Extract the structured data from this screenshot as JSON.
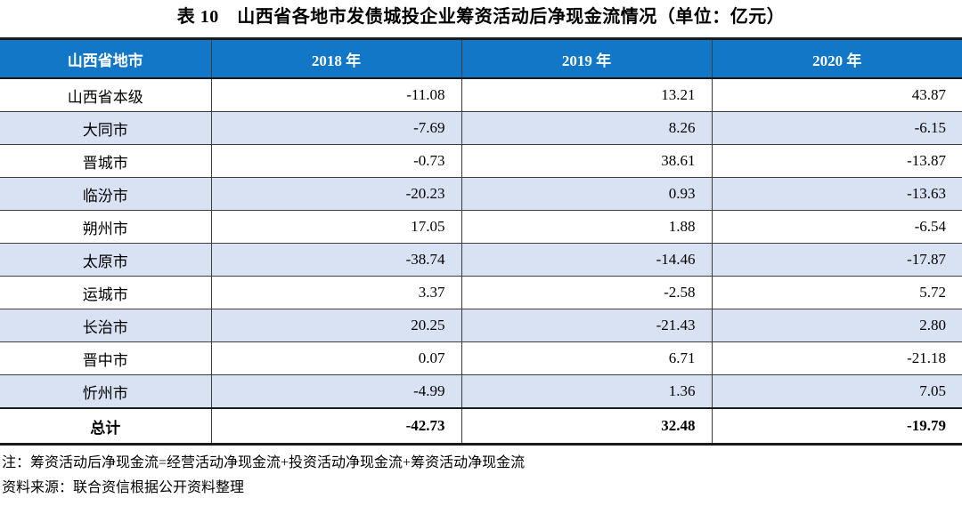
{
  "title": "表 10　山西省各地市发债城投企业筹资活动后净现金流情况（单位：亿元）",
  "table": {
    "columns": [
      "山西省地市",
      "2018 年",
      "2019 年",
      "2020 年"
    ],
    "rows": [
      [
        "山西省本级",
        "-11.08",
        "13.21",
        "43.87"
      ],
      [
        "大同市",
        "-7.69",
        "8.26",
        "-6.15"
      ],
      [
        "晋城市",
        "-0.73",
        "38.61",
        "-13.87"
      ],
      [
        "临汾市",
        "-20.23",
        "0.93",
        "-13.63"
      ],
      [
        "朔州市",
        "17.05",
        "1.88",
        "-6.54"
      ],
      [
        "太原市",
        "-38.74",
        "-14.46",
        "-17.87"
      ],
      [
        "运城市",
        "3.37",
        "-2.58",
        "5.72"
      ],
      [
        "长治市",
        "20.25",
        "-21.43",
        "2.80"
      ],
      [
        "晋中市",
        "0.07",
        "6.71",
        "-21.18"
      ],
      [
        "忻州市",
        "-4.99",
        "1.36",
        "7.05"
      ]
    ],
    "total": [
      "总计",
      "-42.73",
      "32.48",
      "-19.79"
    ]
  },
  "notes": {
    "note": "注：筹资活动后净现金流=经营活动净现金流+投资活动净现金流+筹资活动净现金流",
    "source": "资料来源：联合资信根据公开资料整理"
  },
  "colors": {
    "header_bg": "#1277C7",
    "header_text": "#FFFFFF",
    "alt_row_bg": "#D9E2F3",
    "row_bg": "#FFFFFF",
    "thin_border": "#3C3C3C",
    "thick_border": "#1A1A1A",
    "text": "#000000"
  }
}
